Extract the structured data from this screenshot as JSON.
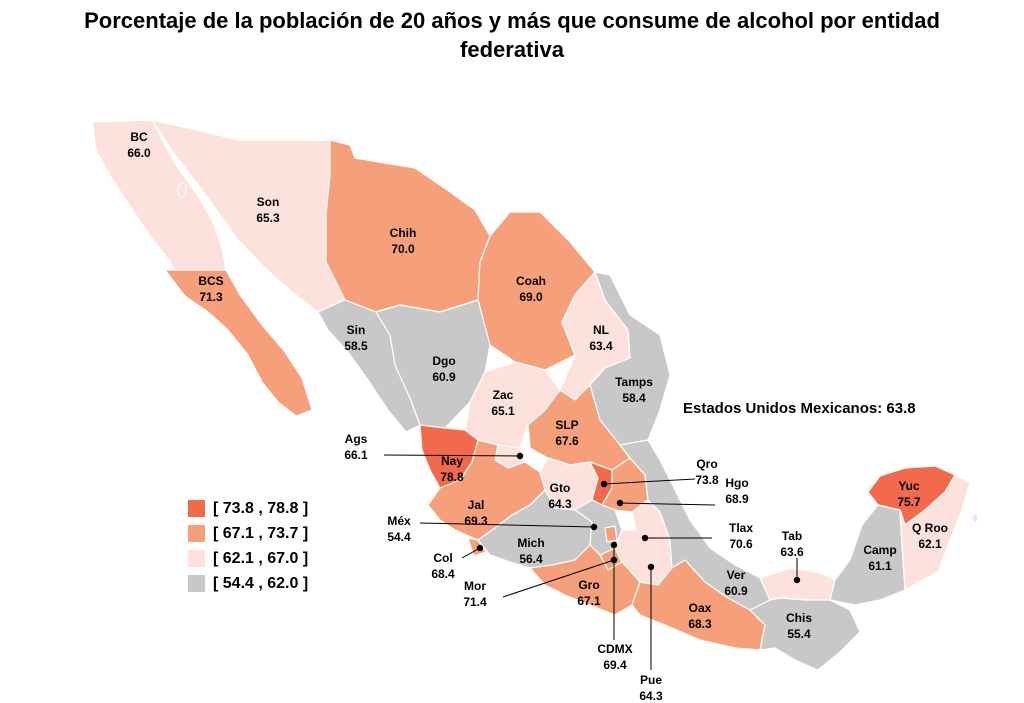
{
  "title": "Porcentaje de la población de 20 años y más que consume de alcohol por entidad\nfederativa",
  "national_label": "Estados Unidos Mexicanos: 63.8",
  "legend": [
    {
      "label": "[ 73.8 , 78.8 ]",
      "color": "#f26a4b"
    },
    {
      "label": "[ 67.1 , 73.7 ]",
      "color": "#f5a07a"
    },
    {
      "label": "[ 62.1 , 67.0 ]",
      "color": "#fde1dd"
    },
    {
      "label": "[ 54.4 , 62.0 ]",
      "color": "#c8c8c8"
    }
  ],
  "states": [
    {
      "abbr": "BC",
      "value": "66.0"
    },
    {
      "abbr": "Son",
      "value": "65.3"
    },
    {
      "abbr": "Chih",
      "value": "70.0"
    },
    {
      "abbr": "Coah",
      "value": "69.0"
    },
    {
      "abbr": "BCS",
      "value": "71.3"
    },
    {
      "abbr": "Sin",
      "value": "58.5"
    },
    {
      "abbr": "Dgo",
      "value": "60.9"
    },
    {
      "abbr": "NL",
      "value": "63.4"
    },
    {
      "abbr": "Tamps",
      "value": "58.4"
    },
    {
      "abbr": "Zac",
      "value": "65.1"
    },
    {
      "abbr": "SLP",
      "value": "67.6"
    },
    {
      "abbr": "Ags",
      "value": "66.1"
    },
    {
      "abbr": "Nay",
      "value": "78.8"
    },
    {
      "abbr": "Jal",
      "value": "69.3"
    },
    {
      "abbr": "Gto",
      "value": "64.3"
    },
    {
      "abbr": "Qro",
      "value": "73.8"
    },
    {
      "abbr": "Hgo",
      "value": "68.9"
    },
    {
      "abbr": "Méx",
      "value": "54.4"
    },
    {
      "abbr": "Tlax",
      "value": "70.6"
    },
    {
      "abbr": "Col",
      "value": "68.4"
    },
    {
      "abbr": "Mich",
      "value": "56.4"
    },
    {
      "abbr": "Mor",
      "value": "71.4"
    },
    {
      "abbr": "Gro",
      "value": "67.1"
    },
    {
      "abbr": "CDMX",
      "value": "69.4"
    },
    {
      "abbr": "Pue",
      "value": "64.3"
    },
    {
      "abbr": "Oax",
      "value": "68.3"
    },
    {
      "abbr": "Ver",
      "value": "60.9"
    },
    {
      "abbr": "Tab",
      "value": "63.6"
    },
    {
      "abbr": "Chis",
      "value": "55.4"
    },
    {
      "abbr": "Camp",
      "value": "61.1"
    },
    {
      "abbr": "Yuc",
      "value": "75.7"
    },
    {
      "abbr": "Q Roo",
      "value": "62.1"
    }
  ]
}
